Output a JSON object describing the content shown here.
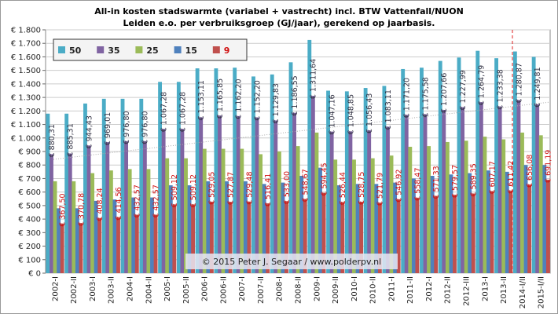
{
  "chart_data": {
    "type": "bar",
    "title": "All-in kosten stadswarmte (variabel + vastrecht) incl. BTW Vattenfall/NUON",
    "subtitle": "Leiden e.o. per verbruiksgroep (GJ/jaar), gerekend op jaarbasis.",
    "annotation": "© 2015 Peter J. Segaar / www.polderpv.nl",
    "categories": [
      "2002-I",
      "2002-II",
      "2003-I",
      "2003-II",
      "2004-I",
      "2004-II",
      "2005-I",
      "2005-II",
      "2006-I",
      "2006-II",
      "2007-I",
      "2007-II",
      "2008-I",
      "2008-II",
      "2009-I",
      "2009-II",
      "2010-I",
      "2010-II",
      "2011-I",
      "2011-II",
      "2012-I",
      "2012-II",
      "2012-III",
      "2013-I",
      "2013-II",
      "2014-I/II",
      "2015-I/II"
    ],
    "series": [
      {
        "name": "50",
        "color": "#4bacc6",
        "values": [
          1180,
          1180,
          1255,
          1290,
          1290,
          1290,
          1415,
          1415,
          1515,
          1515,
          1520,
          1455,
          1470,
          1560,
          1725,
          1350,
          1345,
          1370,
          1385,
          1510,
          1520,
          1570,
          1595,
          1645,
          1590,
          1640,
          1600
        ]
      },
      {
        "name": "35",
        "color": "#8064a2",
        "values": [
          880.31,
          885.31,
          944.43,
          969.01,
          976.8,
          976.8,
          1067.28,
          1067.28,
          1153.11,
          1165.85,
          1162.2,
          1152.2,
          1129.83,
          1186.55,
          1311.64,
          1047.16,
          1048.85,
          1056.43,
          1083.11,
          1171.2,
          1175.58,
          1207.66,
          1227.99,
          1264.79,
          1233.38,
          1280.87,
          1249.81
        ],
        "value_labels": [
          "€ 880,31",
          "€ 885,31",
          "€ 944,43",
          "€ 969,01",
          "€ 976,80",
          "€ 976,80",
          "€ 1.067,28",
          "€ 1.067,28",
          "€ 1.153,11",
          "€ 1.165,85",
          "€ 1.162,20",
          "€ 1.152,20",
          "€ 1.129,83",
          "€ 1.186,55",
          "€ 1.311,64",
          "€ 1.047,16",
          "€ 1.048,85",
          "€ 1.056,43",
          "€ 1.083,11",
          "€ 1.171,20",
          "€ 1.175,58",
          "€ 1.207,66",
          "€ 1.227,99",
          "€ 1.264,79",
          "€ 1.233,38",
          "€ 1.280,87",
          "€ 1.249,81"
        ]
      },
      {
        "name": "25",
        "color": "#9bbb59",
        "values": [
          680,
          680,
          740,
          760,
          770,
          770,
          850,
          850,
          920,
          920,
          920,
          880,
          900,
          940,
          1040,
          840,
          840,
          850,
          870,
          935,
          940,
          970,
          980,
          1010,
          990,
          1040,
          1020
        ]
      },
      {
        "name": "15",
        "color": "#4f81bd",
        "values": [
          480,
          480,
          535,
          545,
          560,
          560,
          650,
          650,
          680,
          680,
          680,
          660,
          670,
          720,
          780,
          650,
          660,
          660,
          670,
          700,
          720,
          730,
          740,
          760,
          750,
          800,
          800
        ]
      },
      {
        "name": "9",
        "color": "#c0504d",
        "values": [
          367.5,
          370.78,
          408.24,
          414.56,
          432.57,
          432.57,
          509.12,
          509.12,
          529.05,
          527.87,
          529.48,
          516.41,
          533.0,
          548.67,
          594.45,
          526.44,
          528.75,
          521.79,
          546.92,
          558.47,
          571.33,
          579.57,
          589.35,
          607.17,
          611.42,
          656.08,
          691.19
        ],
        "value_labels": [
          "€ 367,50",
          "€ 370,78",
          "€ 408,24",
          "€ 414,56",
          "€ 432,57",
          "€ 432,57",
          "€ 509,12",
          "€ 509,12",
          "€ 529,05",
          "€ 527,87",
          "€ 529,48",
          "€ 516,41",
          "€ 533,00",
          "€ 548,67",
          "€ 594,45",
          "€ 526,44",
          "€ 528,75",
          "€ 521,79",
          "€ 546,92",
          "€ 558,47",
          "€ 571,33",
          "€ 579,57",
          "€ 589,35",
          "€ 607,17",
          "€ 611,42",
          "€ 656,08",
          "€ 691,19"
        ]
      }
    ],
    "ylim": [
      0,
      1800
    ],
    "yticks": [
      {
        "value": 0,
        "label": "€ 0"
      },
      {
        "value": 100,
        "label": "€ 100"
      },
      {
        "value": 200,
        "label": "€ 200"
      },
      {
        "value": 300,
        "label": "€ 300"
      },
      {
        "value": 400,
        "label": "€ 400"
      },
      {
        "value": 500,
        "label": "€ 500"
      },
      {
        "value": 600,
        "label": "€ 600"
      },
      {
        "value": 700,
        "label": "€ 700"
      },
      {
        "value": 800,
        "label": "€ 800"
      },
      {
        "value": 900,
        "label": "€ 900"
      },
      {
        "value": 1000,
        "label": "€ 1.000"
      },
      {
        "value": 1100,
        "label": "€ 1.100"
      },
      {
        "value": 1200,
        "label": "€ 1.200"
      },
      {
        "value": 1300,
        "label": "€ 1.300"
      },
      {
        "value": 1400,
        "label": "€ 1.400"
      },
      {
        "value": 1500,
        "label": "€ 1.500"
      },
      {
        "value": 1600,
        "label": "€ 1.600"
      },
      {
        "value": 1700,
        "label": "€ 1.700"
      },
      {
        "value": 1800,
        "label": "€ 1.800"
      }
    ],
    "grid": true
  }
}
